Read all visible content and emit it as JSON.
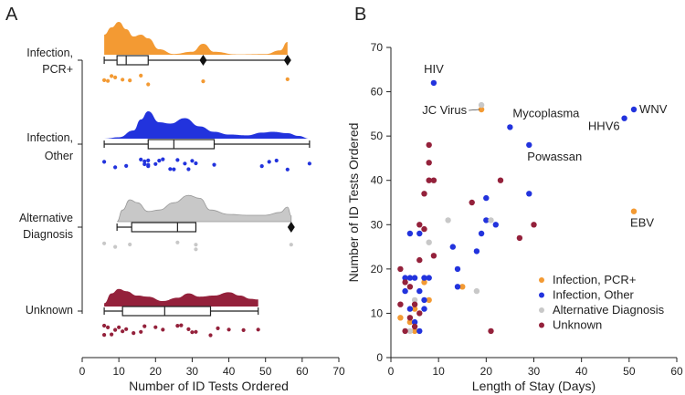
{
  "panels": {
    "left_letter": "A",
    "right_letter": "B"
  },
  "colors": {
    "pcr_plus": "#f39a33",
    "infection_other": "#2233dd",
    "alternative": "#c8c8c8",
    "unknown": "#94213b",
    "axis": "#222222"
  },
  "chart_data": [
    {
      "type": "raincloud",
      "panel": "A",
      "xlabel": "Number of ID Tests Ordered",
      "xlim": [
        0,
        70
      ],
      "xticks": [
        0,
        10,
        20,
        30,
        40,
        50,
        60,
        70
      ],
      "groups": [
        {
          "name": "Infection, PCR+",
          "label_lines": [
            "Infection,",
            "PCR+"
          ],
          "color_key": "pcr_plus",
          "points": [
            6,
            7,
            8,
            9,
            11,
            13,
            16,
            18,
            33,
            56
          ],
          "box": {
            "whisker_low": 6,
            "q1": 9.5,
            "median": 12,
            "q3": 18,
            "whisker_high": 56
          },
          "outliers": [
            33,
            56
          ],
          "density": [
            [
              6,
              0.55
            ],
            [
              8,
              0.75
            ],
            [
              10,
              0.9
            ],
            [
              12,
              0.7
            ],
            [
              14,
              0.5
            ],
            [
              16,
              0.55
            ],
            [
              18,
              0.45
            ],
            [
              21,
              0.15
            ],
            [
              25,
              0.02
            ],
            [
              30,
              0.08
            ],
            [
              33,
              0.3
            ],
            [
              36,
              0.08
            ],
            [
              42,
              0.01
            ],
            [
              50,
              0.02
            ],
            [
              54,
              0.12
            ],
            [
              56,
              0.35
            ],
            [
              56,
              0
            ]
          ]
        },
        {
          "name": "Infection, Other",
          "label_lines": [
            "Infection,",
            "Other"
          ],
          "color_key": "infection_other",
          "points": [
            6,
            9,
            12,
            16,
            17,
            17,
            18,
            18,
            18,
            20,
            21,
            22,
            24,
            25,
            26,
            28,
            29,
            30,
            31,
            36,
            49,
            51,
            53,
            56,
            62
          ],
          "box": {
            "whisker_low": 6,
            "q1": 18,
            "median": 25,
            "q3": 36,
            "whisker_high": 62
          },
          "outliers": [],
          "density": [
            [
              6,
              0
            ],
            [
              10,
              0.05
            ],
            [
              14,
              0.3
            ],
            [
              16,
              0.7
            ],
            [
              18,
              1.0
            ],
            [
              21,
              0.6
            ],
            [
              24,
              0.55
            ],
            [
              28,
              0.75
            ],
            [
              32,
              0.45
            ],
            [
              36,
              0.25
            ],
            [
              40,
              0.15
            ],
            [
              45,
              0.12
            ],
            [
              49,
              0.22
            ],
            [
              52,
              0.25
            ],
            [
              56,
              0.2
            ],
            [
              59,
              0.1
            ],
            [
              62,
              0
            ]
          ]
        },
        {
          "name": "Alternative Diagnosis",
          "label_lines": [
            "Alternative",
            "Diagnosis"
          ],
          "color_key": "alternative",
          "points": [
            6,
            9,
            13,
            26,
            31,
            31,
            57
          ],
          "box": {
            "whisker_low": 9.5,
            "q1": 13.5,
            "median": 26,
            "q3": 31,
            "whisker_high": 31
          },
          "outliers": [
            57
          ],
          "density": [
            [
              9.5,
              0
            ],
            [
              11,
              0.4
            ],
            [
              13,
              0.75
            ],
            [
              15,
              0.65
            ],
            [
              18,
              0.35
            ],
            [
              21,
              0.4
            ],
            [
              25,
              0.65
            ],
            [
              29,
              0.9
            ],
            [
              32,
              0.8
            ],
            [
              35,
              0.4
            ],
            [
              40,
              0.25
            ],
            [
              45,
              0.22
            ],
            [
              50,
              0.22
            ],
            [
              54,
              0.32
            ],
            [
              56,
              0.5
            ],
            [
              57,
              0.2
            ],
            [
              57,
              0
            ]
          ]
        },
        {
          "name": "Unknown",
          "label_lines": [
            "Unknown"
          ],
          "color_key": "unknown",
          "points": [
            6,
            6,
            7,
            8,
            9,
            10,
            11,
            12,
            14,
            16,
            17,
            20,
            22,
            26,
            27,
            29,
            30,
            31,
            35,
            37,
            40,
            44,
            48
          ],
          "box": {
            "whisker_low": 6,
            "q1": 11,
            "median": 22.5,
            "q3": 35,
            "whisker_high": 48
          },
          "outliers": [],
          "density": [
            [
              6,
              0.15
            ],
            [
              8,
              0.6
            ],
            [
              10,
              0.8
            ],
            [
              12,
              0.7
            ],
            [
              15,
              0.5
            ],
            [
              18,
              0.45
            ],
            [
              22,
              0.25
            ],
            [
              26,
              0.4
            ],
            [
              29,
              0.6
            ],
            [
              32,
              0.45
            ],
            [
              36,
              0.5
            ],
            [
              40,
              0.65
            ],
            [
              43,
              0.5
            ],
            [
              46,
              0.35
            ],
            [
              48,
              0.32
            ]
          ]
        }
      ]
    },
    {
      "type": "scatter",
      "panel": "B",
      "xlabel": "Length of Stay (Days)",
      "ylabel": "Number of ID Tests Ordered",
      "xlim": [
        0,
        60
      ],
      "ylim": [
        0,
        70
      ],
      "xticks": [
        0,
        10,
        20,
        30,
        40,
        50,
        60
      ],
      "yticks": [
        0,
        10,
        20,
        30,
        40,
        50,
        60,
        70
      ],
      "legend_position": "bottom-right",
      "series": [
        {
          "name": "Infection, PCR+",
          "color_key": "pcr_plus",
          "points": [
            [
              2,
              9
            ],
            [
              4,
              8
            ],
            [
              5,
              6
            ],
            [
              5,
              11
            ],
            [
              7,
              17
            ],
            [
              8,
              13
            ],
            [
              15,
              16
            ],
            [
              19,
              56
            ],
            [
              51,
              33
            ]
          ]
        },
        {
          "name": "Infection, Other",
          "color_key": "infection_other",
          "points": [
            [
              3,
              15
            ],
            [
              3,
              18
            ],
            [
              4,
              11
            ],
            [
              4,
              18
            ],
            [
              4,
              28
            ],
            [
              5,
              8
            ],
            [
              5,
              18
            ],
            [
              6,
              6
            ],
            [
              6,
              15
            ],
            [
              6,
              28
            ],
            [
              7,
              11
            ],
            [
              7,
              13
            ],
            [
              7,
              18
            ],
            [
              8,
              18
            ],
            [
              9,
              62
            ],
            [
              13,
              25
            ],
            [
              14,
              20
            ],
            [
              14,
              16
            ],
            [
              18,
              24
            ],
            [
              19,
              28
            ],
            [
              20,
              31
            ],
            [
              20,
              36
            ],
            [
              22,
              30
            ],
            [
              25,
              52
            ],
            [
              29,
              37
            ],
            [
              29,
              48
            ],
            [
              49,
              54
            ],
            [
              51,
              56
            ]
          ]
        },
        {
          "name": "Alternative Diagnosis",
          "color_key": "alternative",
          "points": [
            [
              4,
              6
            ],
            [
              5,
              13
            ],
            [
              8,
              26
            ],
            [
              12,
              31
            ],
            [
              18,
              15
            ],
            [
              19,
              57
            ],
            [
              21,
              31
            ]
          ]
        },
        {
          "name": "Unknown",
          "color_key": "unknown",
          "points": [
            [
              2,
              20
            ],
            [
              2,
              12
            ],
            [
              3,
              6
            ],
            [
              3,
              17
            ],
            [
              4,
              9
            ],
            [
              4,
              16
            ],
            [
              5,
              7
            ],
            [
              5,
              12
            ],
            [
              6,
              30
            ],
            [
              6,
              10
            ],
            [
              6,
              22
            ],
            [
              7,
              29
            ],
            [
              7,
              37
            ],
            [
              8,
              48
            ],
            [
              8,
              44
            ],
            [
              8,
              40
            ],
            [
              9,
              40
            ],
            [
              9,
              23
            ],
            [
              17,
              35
            ],
            [
              21,
              6
            ],
            [
              23,
              40
            ],
            [
              27,
              27
            ],
            [
              30,
              30
            ]
          ]
        }
      ],
      "annotations": [
        {
          "text": "HIV",
          "point": [
            9,
            62
          ]
        },
        {
          "text": "JC Virus",
          "point": [
            19,
            56
          ]
        },
        {
          "text": "Mycoplasma",
          "point": [
            25,
            52
          ]
        },
        {
          "text": "Powassan",
          "point": [
            29,
            48
          ]
        },
        {
          "text": "HHV6",
          "point": [
            49,
            54
          ]
        },
        {
          "text": "WNV",
          "point": [
            51,
            56
          ]
        },
        {
          "text": "EBV",
          "point": [
            51,
            33
          ]
        }
      ]
    }
  ]
}
